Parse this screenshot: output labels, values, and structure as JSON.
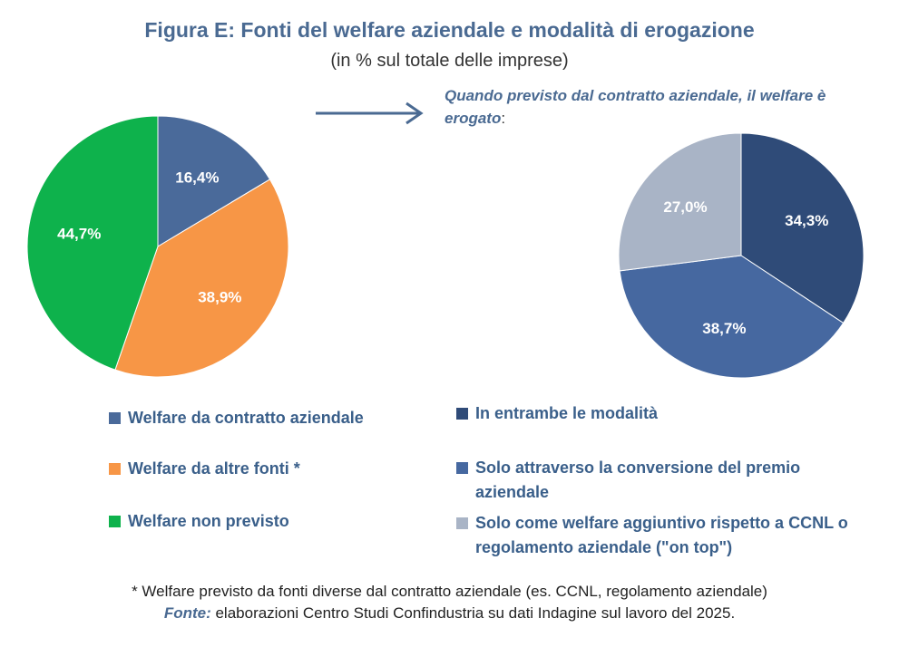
{
  "title": "Figura E: Fonti del welfare aziendale e modalità di erogazione",
  "subtitle": "(in % sul totale delle imprese)",
  "note_main": "Quando previsto dal contratto aziendale, il welfare è erogato",
  "note_colon": ":",
  "footnote": "* Welfare previsto da fonti diverse dal contratto aziendale (es. CCNL, regolamento aziendale)",
  "source_label": "Fonte:",
  "source_text": " elaborazioni Centro Studi Confindustria su dati Indagine sul lavoro del 2025.",
  "chart_data": [
    {
      "type": "pie",
      "categories": [
        "Welfare da contratto aziendale",
        "Welfare da altre fonti *",
        "Welfare non previsto"
      ],
      "values": [
        16.4,
        38.9,
        44.7
      ],
      "labels": [
        "16,4%",
        "38,9%",
        "44,7%"
      ],
      "colors": [
        "#4a6a9a",
        "#f79646",
        "#0eb24c"
      ],
      "start_angle_deg": 0,
      "direction": "clockwise"
    },
    {
      "type": "pie",
      "categories": [
        "In entrambe le modalità",
        "Solo attraverso la conversione del premio aziendale",
        "Solo come welfare aggiuntivo rispetto a CCNL o regolamento aziendale (\"on top\")"
      ],
      "values": [
        34.3,
        38.7,
        27.0
      ],
      "labels": [
        "34,3%",
        "38,7%",
        "27,0%"
      ],
      "colors": [
        "#2f4b78",
        "#4668a0",
        "#a9b4c6"
      ],
      "start_angle_deg": 0,
      "direction": "clockwise"
    }
  ]
}
